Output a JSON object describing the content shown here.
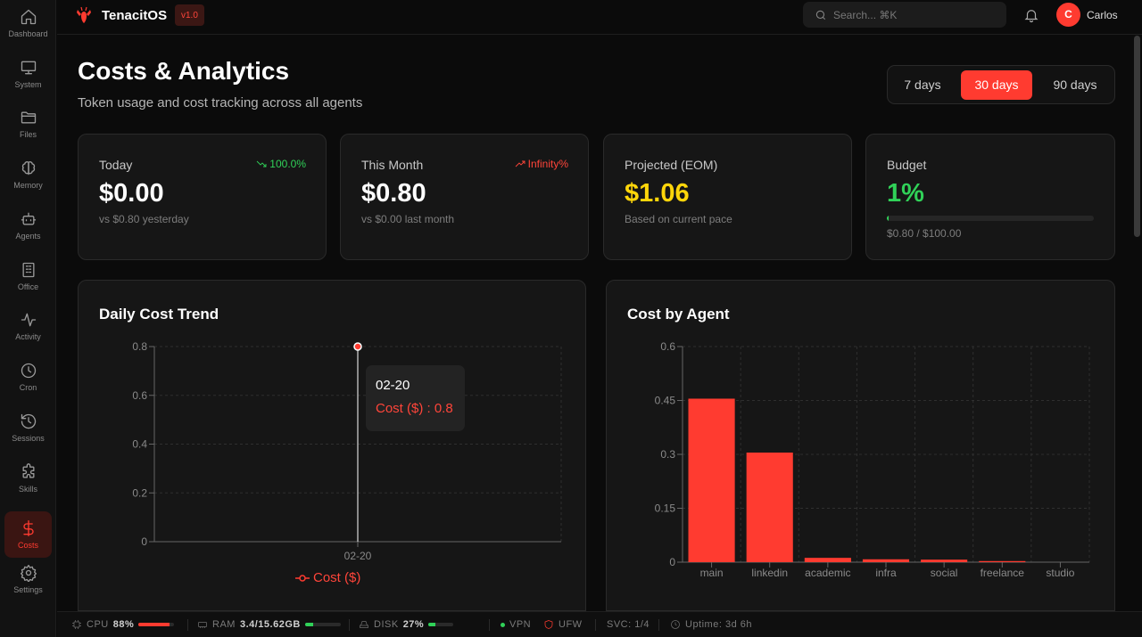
{
  "app": {
    "name": "TenacitOS",
    "version": "v1.0"
  },
  "topbar": {
    "search_placeholder": "Search... ⌘K",
    "user_initial": "C",
    "user_name": "Carlos"
  },
  "sidebar": {
    "items": [
      {
        "label": "Dashboard",
        "icon": "home-icon"
      },
      {
        "label": "System",
        "icon": "monitor-icon"
      },
      {
        "label": "Files",
        "icon": "folder-icon"
      },
      {
        "label": "Memory",
        "icon": "brain-icon"
      },
      {
        "label": "Agents",
        "icon": "bot-icon"
      },
      {
        "label": "Office",
        "icon": "building-icon"
      },
      {
        "label": "Activity",
        "icon": "activity-icon"
      },
      {
        "label": "Cron",
        "icon": "clock-icon"
      },
      {
        "label": "Sessions",
        "icon": "history-icon"
      },
      {
        "label": "Skills",
        "icon": "puzzle-icon"
      },
      {
        "label": "Costs",
        "icon": "dollar-icon",
        "active": true
      },
      {
        "label": "Settings",
        "icon": "gear-icon"
      }
    ]
  },
  "page": {
    "title": "Costs & Analytics",
    "subtitle": "Token usage and cost tracking across all agents",
    "ranges": [
      "7 days",
      "30 days",
      "90 days"
    ],
    "selected_range": "30 days"
  },
  "stats": {
    "today": {
      "label": "Today",
      "value": "$0.00",
      "note": "vs $0.80 yesterday",
      "trend": "100.0%",
      "trend_color": "#30d158"
    },
    "month": {
      "label": "This Month",
      "value": "$0.80",
      "note": "vs $0.00 last month",
      "trend": "Infinity%",
      "trend_color": "#ff453a"
    },
    "projected": {
      "label": "Projected (EOM)",
      "value": "$1.06",
      "note": "Based on current pace",
      "value_color": "#ffd60a"
    },
    "budget": {
      "label": "Budget",
      "value": "1%",
      "note": "$0.80 / $100.00",
      "fraction": 0.008,
      "value_color": "#30d158"
    }
  },
  "chart_data": [
    {
      "type": "line",
      "title": "Daily Cost Trend",
      "x": [
        "02-20"
      ],
      "series": [
        {
          "name": "Cost ($)",
          "values": [
            0.8
          ],
          "color": "#ff3b30"
        }
      ],
      "yticks": [
        "0",
        "0.2",
        "0.4",
        "0.6",
        "0.8"
      ],
      "ylim": [
        0,
        0.8
      ],
      "grid": true,
      "legend": "bottom-center",
      "tooltip": {
        "x": "02-20",
        "text": "Cost ($) : 0.8"
      }
    },
    {
      "type": "bar",
      "title": "Cost by Agent",
      "categories": [
        "main",
        "linkedin",
        "academic",
        "infra",
        "social",
        "freelance",
        "studio"
      ],
      "values": [
        0.455,
        0.305,
        0.012,
        0.008,
        0.007,
        0.003,
        0.0
      ],
      "yticks": [
        "0",
        "0.15",
        "0.3",
        "0.45",
        "0.6"
      ],
      "ylim": [
        0,
        0.6
      ],
      "grid": true,
      "color": "#ff3b30"
    }
  ],
  "statusbar": {
    "cpu_label": "CPU",
    "cpu_value": "88%",
    "cpu_fraction": 0.88,
    "ram_label": "RAM",
    "ram_value": "3.4/15.62GB",
    "ram_fraction": 0.22,
    "disk_label": "DISK",
    "disk_value": "27%",
    "disk_fraction": 0.27,
    "vpn": "VPN",
    "ufw": "UFW",
    "svc": "SVC: 1/4",
    "uptime": "Uptime: 3d 6h"
  }
}
